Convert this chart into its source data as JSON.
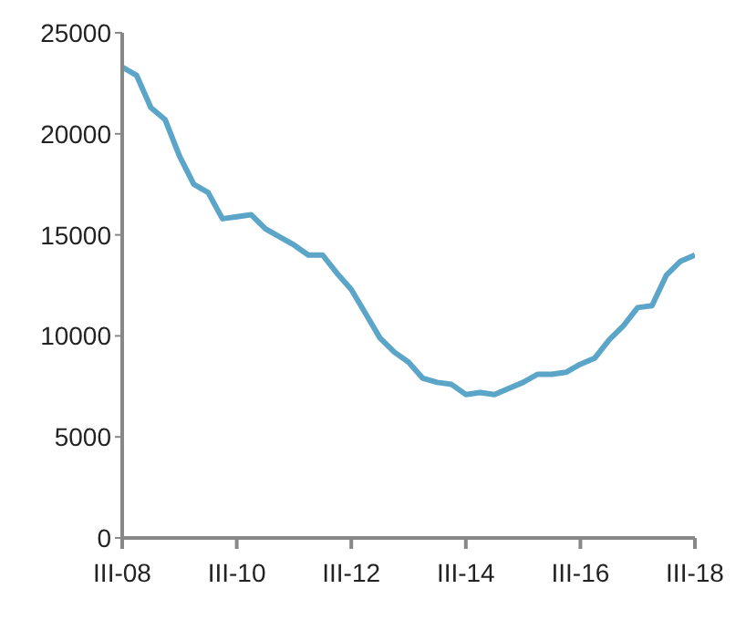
{
  "chart_data": {
    "type": "line",
    "categories": [
      "III-08",
      null,
      null,
      null,
      null,
      null,
      null,
      null,
      "III-10",
      null,
      null,
      null,
      null,
      null,
      null,
      null,
      "III-12",
      null,
      null,
      null,
      null,
      null,
      null,
      null,
      "III-14",
      null,
      null,
      null,
      null,
      null,
      null,
      null,
      "III-16",
      null,
      null,
      null,
      null,
      null,
      null,
      null,
      "III-18"
    ],
    "series": [
      {
        "color": "#5aa5c8",
        "values": [
          23300,
          22900,
          21300,
          20700,
          18900,
          17500,
          17100,
          15800,
          15900,
          16000,
          15300,
          14900,
          14500,
          14000,
          14000,
          13100,
          12300,
          11100,
          9900,
          9200,
          8700,
          7900,
          7700,
          7600,
          7100,
          7200,
          7100,
          7400,
          7700,
          8100,
          8100,
          8200,
          8600,
          8900,
          9800,
          10500,
          11400,
          11500,
          13000,
          13700,
          14000
        ]
      }
    ],
    "ylim": [
      0,
      25000
    ],
    "yticks": [
      0,
      5000,
      10000,
      15000,
      20000,
      25000
    ],
    "grid": false,
    "legend": false,
    "marker": "none",
    "line_style": "solid"
  }
}
